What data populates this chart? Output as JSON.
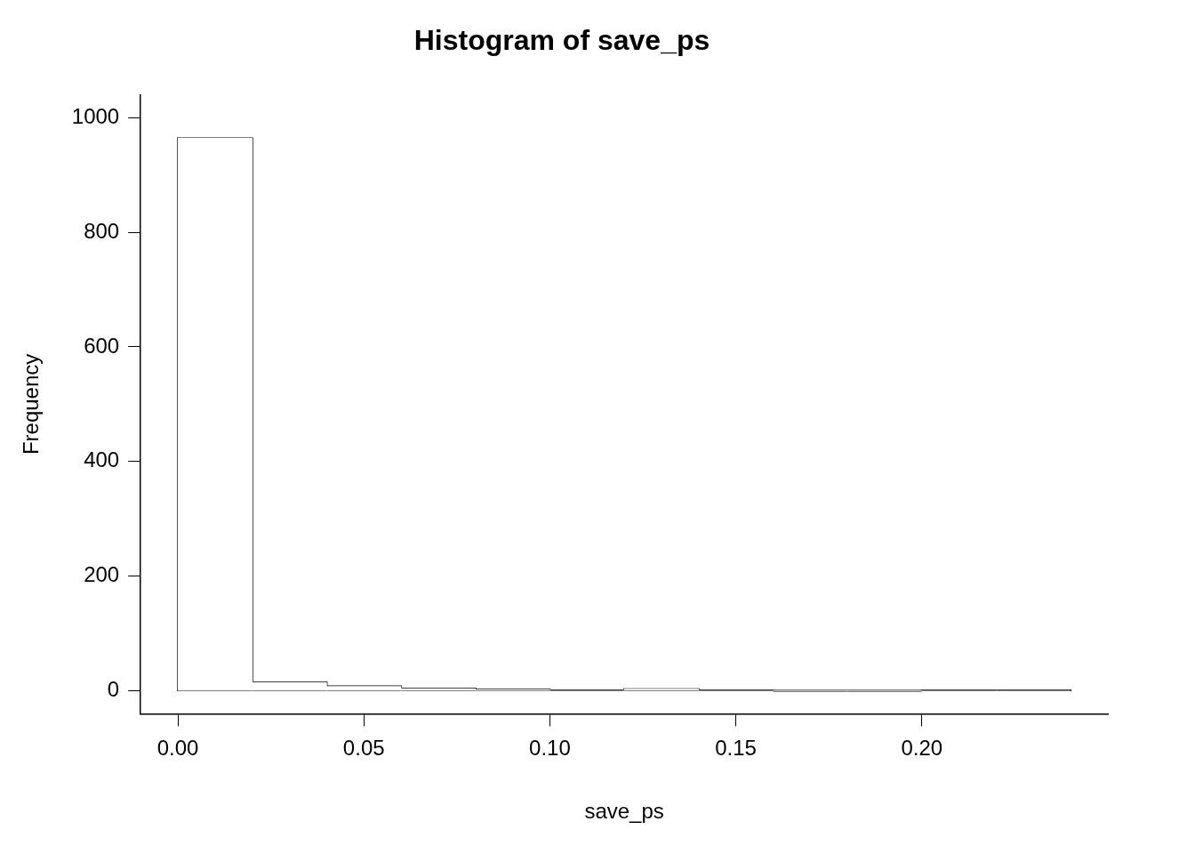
{
  "chart_data": {
    "type": "histogram",
    "title": "Histogram of save_ps",
    "xlabel": "save_ps",
    "ylabel": "Frequency",
    "bins": [
      0,
      0.02,
      0.04,
      0.06,
      0.08,
      0.1,
      0.12,
      0.14,
      0.16,
      0.18,
      0.2,
      0.22,
      0.24
    ],
    "values": [
      964,
      15,
      8,
      4,
      2,
      1,
      3,
      1,
      0,
      0,
      1,
      1
    ],
    "color": "#ffffff",
    "xlim": [
      -0.01,
      0.25
    ],
    "xticks": [
      {
        "value": 0,
        "label": "0.00"
      },
      0.05,
      {
        "value": 0.1,
        "label": "0.10"
      },
      0.15,
      {
        "value": 0.2,
        "label": "0.20"
      }
    ],
    "ylim": [
      -40,
      1040
    ],
    "yticks": [
      0,
      200,
      400,
      600,
      800,
      1000
    ],
    "grid": false
  }
}
